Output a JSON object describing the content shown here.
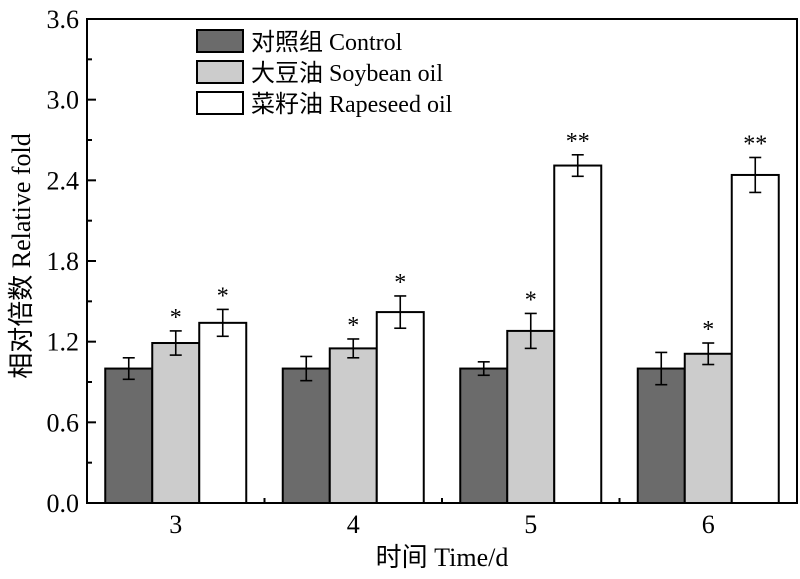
{
  "chart_data": {
    "type": "bar",
    "xlabel": "时间 Time/d",
    "ylabel": "相对倍数 Relative fold",
    "ylim": [
      0,
      3.6
    ],
    "yticks": [
      "0.0",
      "0.6",
      "1.2",
      "1.8",
      "2.4",
      "3.0",
      "3.6"
    ],
    "categories": [
      "3",
      "4",
      "5",
      "6"
    ],
    "legend_position": "top-left",
    "series": [
      {
        "name": "对照组 Control",
        "color": "#6b6b6b",
        "values": [
          1.0,
          1.0,
          1.0,
          1.0
        ],
        "errors": [
          0.08,
          0.09,
          0.05,
          0.12
        ],
        "significance": [
          "",
          "",
          "",
          ""
        ]
      },
      {
        "name": "大豆油 Soybean oil",
        "color": "#cccccc",
        "values": [
          1.19,
          1.15,
          1.28,
          1.11
        ],
        "errors": [
          0.09,
          0.07,
          0.13,
          0.08
        ],
        "significance": [
          "*",
          "*",
          "*",
          "*"
        ]
      },
      {
        "name": "菜籽油 Rapeseed oil",
        "color": "#ffffff",
        "values": [
          1.34,
          1.42,
          2.51,
          2.44
        ],
        "errors": [
          0.1,
          0.12,
          0.08,
          0.13
        ],
        "significance": [
          "*",
          "*",
          "**",
          "**"
        ]
      }
    ]
  }
}
